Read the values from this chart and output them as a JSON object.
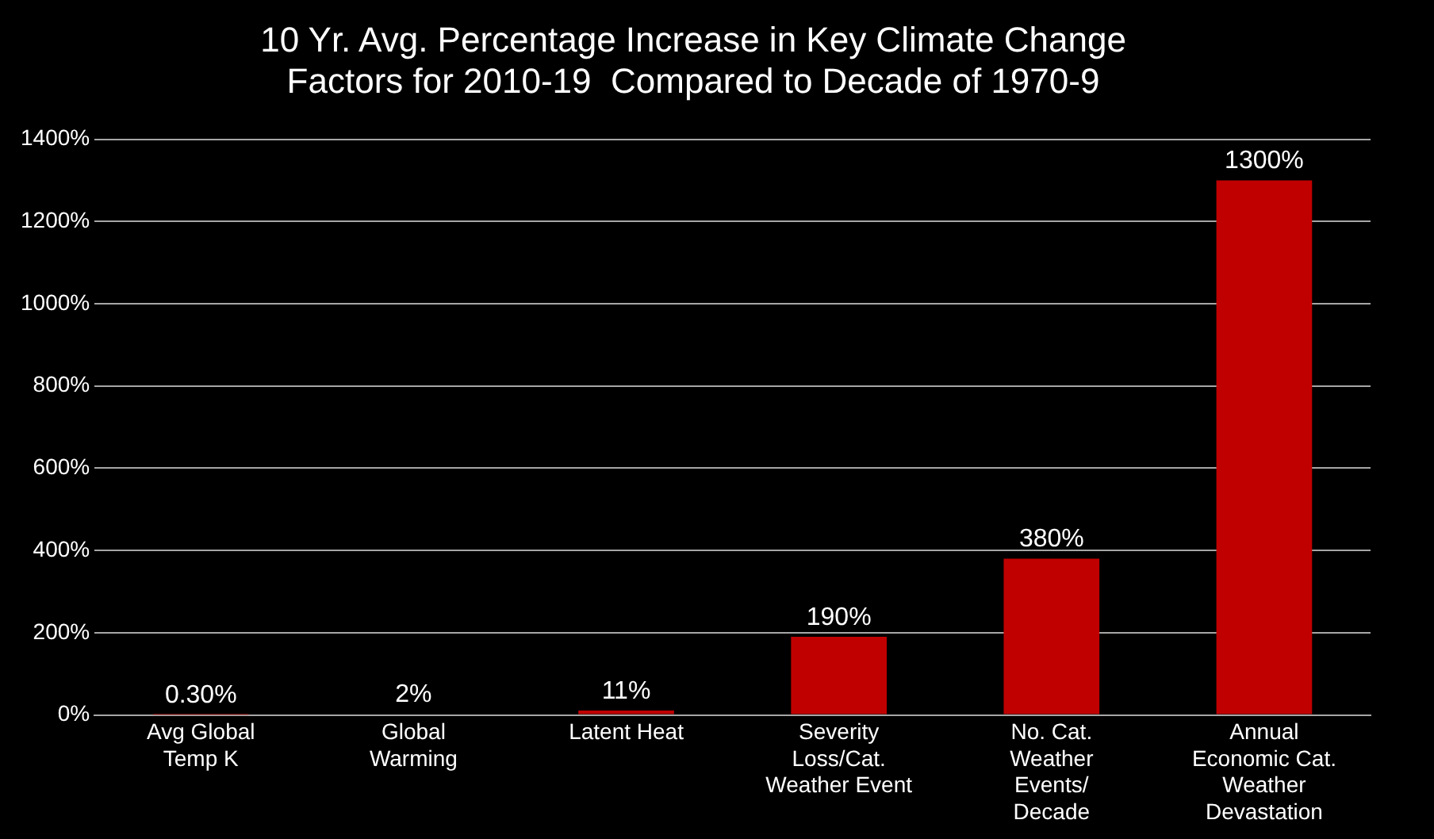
{
  "chart_data": {
    "type": "bar",
    "title": "10 Yr. Avg. Percentage Increase in Key Climate Change\nFactors for 2010-19  Compared to Decade of 1970-9",
    "categories": [
      "Avg Global\nTemp K",
      "Global\nWarming",
      "Latent Heat",
      "Severity\nLoss/Cat.\nWeather Event",
      "No. Cat.\nWeather\nEvents/\nDecade",
      "Annual\nEconomic Cat.\nWeather\nDevastation"
    ],
    "values": [
      0.3,
      2,
      11,
      190,
      380,
      1300
    ],
    "value_labels": [
      "0.30%",
      "2%",
      "11%",
      "190%",
      "380%",
      "1300%"
    ],
    "color": "#c00000",
    "ylim": [
      0,
      1400
    ],
    "yticks": [
      {
        "value": 0,
        "label": "0%"
      },
      {
        "value": 200,
        "label": "200%"
      },
      {
        "value": 400,
        "label": "400%"
      },
      {
        "value": 600,
        "label": "600%"
      },
      {
        "value": 800,
        "label": "800%"
      },
      {
        "value": 1000,
        "label": "1000%"
      },
      {
        "value": 1200,
        "label": "1200%"
      },
      {
        "value": 1400,
        "label": "1400%"
      }
    ],
    "grid": "y",
    "legend": false
  }
}
